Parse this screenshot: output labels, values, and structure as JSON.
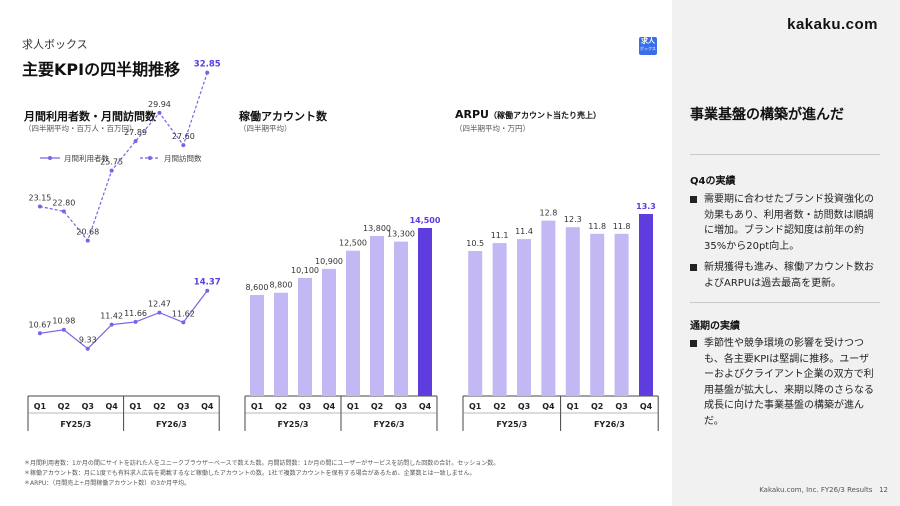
{
  "brand": {
    "logo": "kakaku.com",
    "badge_line1": "求人",
    "badge_line2": "ボックス"
  },
  "header": {
    "section": "求人ボックス",
    "title": "主要KPIの四半期推移"
  },
  "colors": {
    "light_bar": "#c4b8f4",
    "highlight": "#5e3cde",
    "line": "#7b63e6"
  },
  "panels": {
    "users": {
      "title": "月間利用者数・月間訪問数",
      "subtitle": "（四半期平均・百万人・百万回）"
    },
    "accounts": {
      "title": "稼働アカウント数",
      "subtitle": "（四半期平均）"
    },
    "arpu": {
      "title": "ARPU",
      "title_note": "（稼働アカウント当たり売上）",
      "subtitle": "（四半期平均・万円）"
    }
  },
  "axis": {
    "quarters": [
      "Q1",
      "Q2",
      "Q3",
      "Q4",
      "Q1",
      "Q2",
      "Q3",
      "Q4"
    ],
    "years": [
      "FY25/3",
      "FY26/3"
    ]
  },
  "chart_data": [
    {
      "type": "line",
      "title": "月間利用者数・月間訪問数",
      "categories": [
        "FY25/3 Q1",
        "FY25/3 Q2",
        "FY25/3 Q3",
        "FY25/3 Q4",
        "FY26/3 Q1",
        "FY26/3 Q2",
        "FY26/3 Q3",
        "FY26/3 Q4"
      ],
      "series": [
        {
          "name": "月間訪問数",
          "values": [
            23.15,
            22.8,
            20.68,
            25.75,
            27.89,
            29.94,
            27.6,
            32.85
          ]
        },
        {
          "name": "月間利用者数",
          "values": [
            10.67,
            10.98,
            9.33,
            11.42,
            11.66,
            12.47,
            11.62,
            14.37
          ]
        }
      ],
      "labels": {
        "visits": [
          "23.15",
          "22.80",
          "20.68",
          "25.75",
          "27.89",
          "29.94",
          "27.60",
          "32.85"
        ],
        "users": [
          "10.67",
          "10.98",
          "9.33",
          "11.42",
          "11.66",
          "12.47",
          "11.62",
          "14.37"
        ]
      },
      "legend": [
        "月間利用者数",
        "月間訪問数"
      ],
      "legend_position": "top-left"
    },
    {
      "type": "bar",
      "title": "稼働アカウント数",
      "categories": [
        "FY25/3 Q1",
        "FY25/3 Q2",
        "FY25/3 Q3",
        "FY25/3 Q4",
        "FY26/3 Q1",
        "FY26/3 Q2",
        "FY26/3 Q3",
        "FY26/3 Q4"
      ],
      "values": [
        8600,
        8800,
        10100,
        10900,
        12500,
        13800,
        13300,
        14500
      ],
      "labels": [
        "8,600",
        "8,800",
        "10,100",
        "10,900",
        "12,500",
        "13,800",
        "13,300",
        "14,500"
      ],
      "highlight_index": 7
    },
    {
      "type": "bar",
      "title": "ARPU",
      "categories": [
        "FY25/3 Q1",
        "FY25/3 Q2",
        "FY25/3 Q3",
        "FY25/3 Q4",
        "FY26/3 Q1",
        "FY26/3 Q2",
        "FY26/3 Q3",
        "FY26/3 Q4"
      ],
      "values": [
        10.5,
        11.1,
        11.4,
        12.8,
        12.3,
        11.8,
        11.8,
        13.3
      ],
      "labels": [
        "10.5",
        "11.1",
        "11.4",
        "12.8",
        "12.3",
        "11.8",
        "11.8",
        "13.3"
      ],
      "highlight_index": 7
    }
  ],
  "sidebar": {
    "heading": "事業基盤の構築が進んだ",
    "q4_heading": "Q4の実績",
    "q4_bullets": [
      "需要期に合わせたブランド投資強化の効果もあり、利用者数・訪問数は順調に増加。ブランド認知度は前年の約35%から20pt向上。",
      "新規獲得も進み、稼働アカウント数およびARPUは過去最高を更新。"
    ],
    "fy_heading": "通期の実績",
    "fy_bullets": [
      "季節性や競争環境の影響を受けつつも、各主要KPIは堅調に推移。ユーザーおよびクライアント企業の双方で利用基盤が拡大し、来期以降のさらなる成長に向けた事業基盤の構築が進んだ。"
    ]
  },
  "footnotes": [
    "＊月間利用者数：1か月の間にサイトを訪れた人をユニークブラウザーベースで数えた数。月間訪問数：1か月の間にユーザーがサービスを訪問した回数の合計。セッション数。",
    "＊稼働アカウント数：月に1度でも有料求人広告を掲載するなど稼働したアカウントの数。1社で複数アカウントを保有する場合があるため、企業数とは一致しません。",
    "＊ARPU：（月間売上÷月間稼働アカウント数）の3か月平均。"
  ],
  "footer": {
    "text": "Kakaku.com, Inc. FY26/3 Results",
    "page": "12"
  }
}
